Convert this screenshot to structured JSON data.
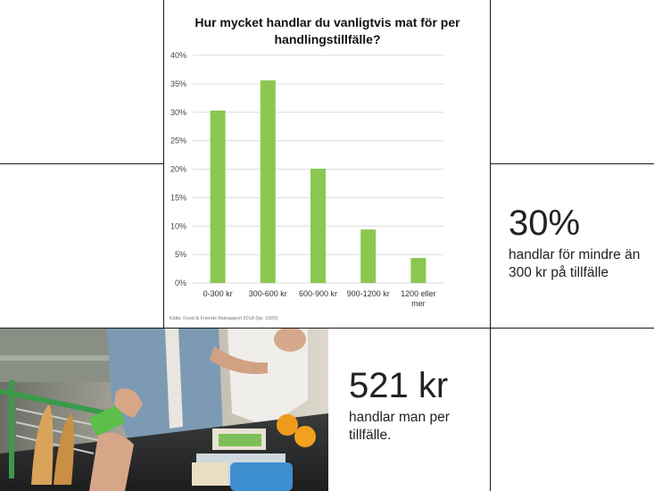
{
  "chart_data": {
    "type": "bar",
    "title": "Hur mycket handlar du vanligtvis mat för per handlingstillfälle?",
    "categories": [
      "0-300 kr",
      "300-600 kr",
      "600-900 kr",
      "900-1200 kr",
      "1200 eller mer"
    ],
    "values": [
      30.3,
      35.6,
      20.1,
      9.4,
      4.4
    ],
    "y_ticks": [
      "0%",
      "5%",
      "10%",
      "15%",
      "20%",
      "25%",
      "30%",
      "35%",
      "40%"
    ],
    "ylim": [
      0,
      40
    ],
    "grid": true,
    "bar_color": "#8cc751",
    "source": "Källa: Food & Friends Matrapport 2018 (bp: 1000)"
  },
  "stat1": {
    "value": "30%",
    "caption": "handlar för mindre än 300 kr på tillfälle"
  },
  "stat2": {
    "value": "521 kr",
    "caption": "handlar man per tillfälle."
  },
  "photo": {
    "description_icon": "checkout-photo-icon"
  }
}
